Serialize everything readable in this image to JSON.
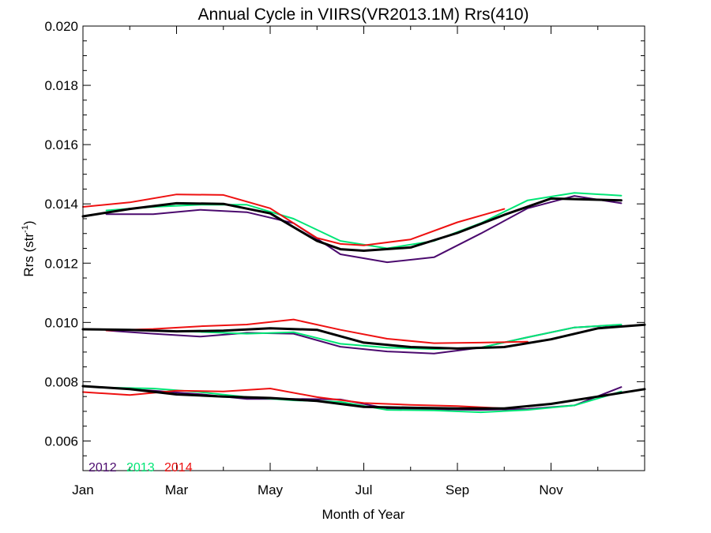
{
  "chart_data": {
    "type": "line",
    "title": "Annual Cycle in VIIRS(VR2013.1M) Rrs(410)",
    "xlabel": "Month of Year",
    "ylabel_main": "Rrs (str",
    "ylabel_sup": "-1",
    "ylabel_close": ")",
    "xlim": [
      1,
      13
    ],
    "ylim": [
      0.005,
      0.02
    ],
    "x_ticks": [
      {
        "value": 1,
        "label": "Jan"
      },
      {
        "value": 3,
        "label": "Mar"
      },
      {
        "value": 5,
        "label": "May"
      },
      {
        "value": 7,
        "label": "Jul"
      },
      {
        "value": 9,
        "label": "Sep"
      },
      {
        "value": 11,
        "label": "Nov"
      }
    ],
    "y_ticks": [
      {
        "value": 0.006,
        "label": "0.006"
      },
      {
        "value": 0.008,
        "label": "0.008"
      },
      {
        "value": 0.01,
        "label": "0.010"
      },
      {
        "value": 0.012,
        "label": "0.012"
      },
      {
        "value": 0.014,
        "label": "0.014"
      },
      {
        "value": 0.016,
        "label": "0.016"
      },
      {
        "value": 0.018,
        "label": "0.018"
      },
      {
        "value": 0.02,
        "label": "0.020"
      }
    ],
    "grid": false,
    "legend_placement": "bottom-left",
    "legend": [
      {
        "label": "2012",
        "color": "#4b0a6e"
      },
      {
        "label": "2013",
        "color": "#00e676"
      },
      {
        "label": "2014",
        "color": "#ee1111"
      }
    ],
    "series": [
      {
        "group": "upper",
        "legend_index": 0,
        "color": "#4b0a6e",
        "width": 2,
        "points": [
          [
            1.5,
            0.01365
          ],
          [
            2.5,
            0.01365
          ],
          [
            3.5,
            0.0138
          ],
          [
            4.5,
            0.01372
          ],
          [
            5.5,
            0.01335
          ],
          [
            6.5,
            0.0123
          ],
          [
            7.5,
            0.01203
          ],
          [
            8.5,
            0.0122
          ],
          [
            9.5,
            0.013
          ],
          [
            10.5,
            0.01385
          ],
          [
            11.5,
            0.01427
          ],
          [
            12.5,
            0.01402
          ]
        ]
      },
      {
        "group": "upper",
        "legend_index": 1,
        "color": "#00e676",
        "width": 2,
        "points": [
          [
            1.5,
            0.01378
          ],
          [
            2.5,
            0.0139
          ],
          [
            3.5,
            0.01397
          ],
          [
            4.5,
            0.01397
          ],
          [
            5.5,
            0.0135
          ],
          [
            6.5,
            0.01275
          ],
          [
            7.5,
            0.0125
          ],
          [
            8.5,
            0.01275
          ],
          [
            9.5,
            0.01335
          ],
          [
            10.5,
            0.01412
          ],
          [
            11.5,
            0.01437
          ],
          [
            12.5,
            0.01428
          ]
        ]
      },
      {
        "group": "upper",
        "legend_index": 2,
        "color": "#ee1111",
        "width": 2,
        "points": [
          [
            1,
            0.0139
          ],
          [
            2,
            0.01405
          ],
          [
            3,
            0.01432
          ],
          [
            4,
            0.0143
          ],
          [
            5,
            0.01385
          ],
          [
            6,
            0.01285
          ],
          [
            6.5,
            0.01265
          ],
          [
            7,
            0.0126
          ],
          [
            8,
            0.0128
          ],
          [
            9,
            0.01338
          ],
          [
            10,
            0.01383
          ]
        ]
      },
      {
        "group": "upper",
        "legend_index": null,
        "color": "#000000",
        "width": 3,
        "points": [
          [
            1,
            0.01358
          ],
          [
            2,
            0.01383
          ],
          [
            3,
            0.01402
          ],
          [
            4,
            0.014
          ],
          [
            5,
            0.01368
          ],
          [
            6,
            0.01275
          ],
          [
            6.5,
            0.01247
          ],
          [
            7,
            0.01242
          ],
          [
            8,
            0.01253
          ],
          [
            9,
            0.01302
          ],
          [
            10,
            0.01363
          ],
          [
            11,
            0.01418
          ],
          [
            12.5,
            0.01412
          ]
        ]
      },
      {
        "group": "middle",
        "legend_index": 0,
        "color": "#4b0a6e",
        "width": 2,
        "points": [
          [
            1.5,
            0.00973
          ],
          [
            2.5,
            0.00962
          ],
          [
            3.5,
            0.00952
          ],
          [
            4.5,
            0.00965
          ],
          [
            5.5,
            0.00962
          ],
          [
            6.5,
            0.00918
          ],
          [
            7.5,
            0.00902
          ],
          [
            8.5,
            0.00895
          ],
          [
            9.5,
            0.00915
          ],
          [
            10.5,
            0.0095
          ],
          [
            11.5,
            0.00983
          ],
          [
            12.5,
            0.00992
          ]
        ]
      },
      {
        "group": "middle",
        "legend_index": 1,
        "color": "#00e676",
        "width": 2,
        "points": [
          [
            1.5,
            0.00977
          ],
          [
            2.5,
            0.00972
          ],
          [
            3.5,
            0.00968
          ],
          [
            4.5,
            0.00962
          ],
          [
            5.5,
            0.00967
          ],
          [
            6.5,
            0.00928
          ],
          [
            7.5,
            0.00915
          ],
          [
            8.5,
            0.0091
          ],
          [
            9.5,
            0.00915
          ],
          [
            10.5,
            0.0095
          ],
          [
            11.5,
            0.00983
          ],
          [
            12.5,
            0.00993
          ]
        ]
      },
      {
        "group": "middle",
        "legend_index": 2,
        "color": "#ee1111",
        "width": 2,
        "points": [
          [
            1.5,
            0.00973
          ],
          [
            2.5,
            0.00978
          ],
          [
            3.5,
            0.00987
          ],
          [
            4.5,
            0.00993
          ],
          [
            5.5,
            0.0101
          ],
          [
            6.5,
            0.00975
          ],
          [
            7.5,
            0.00945
          ],
          [
            8.5,
            0.0093
          ],
          [
            9.5,
            0.00932
          ],
          [
            10.5,
            0.00935
          ]
        ]
      },
      {
        "group": "middle",
        "legend_index": null,
        "color": "#000000",
        "width": 3,
        "points": [
          [
            1,
            0.00977
          ],
          [
            2,
            0.00975
          ],
          [
            3,
            0.0097
          ],
          [
            4,
            0.00972
          ],
          [
            5,
            0.0098
          ],
          [
            6,
            0.00975
          ],
          [
            7,
            0.00932
          ],
          [
            8,
            0.00917
          ],
          [
            9,
            0.00912
          ],
          [
            10,
            0.00917
          ],
          [
            11,
            0.00943
          ],
          [
            12,
            0.0098
          ],
          [
            13,
            0.00992
          ]
        ]
      },
      {
        "group": "lower",
        "legend_index": 0,
        "color": "#4b0a6e",
        "width": 2,
        "points": [
          [
            1.5,
            0.0078
          ],
          [
            2.5,
            0.0077
          ],
          [
            3.5,
            0.00758
          ],
          [
            4.5,
            0.00742
          ],
          [
            5.5,
            0.00742
          ],
          [
            6.5,
            0.0074
          ],
          [
            7.5,
            0.0071
          ],
          [
            8.5,
            0.00707
          ],
          [
            9.5,
            0.00705
          ],
          [
            10.5,
            0.00708
          ],
          [
            11.5,
            0.0072
          ],
          [
            12.5,
            0.00782
          ]
        ]
      },
      {
        "group": "lower",
        "legend_index": 1,
        "color": "#00e676",
        "width": 2,
        "points": [
          [
            1.5,
            0.0078
          ],
          [
            2.5,
            0.00777
          ],
          [
            3.5,
            0.00765
          ],
          [
            4.5,
            0.00748
          ],
          [
            5.5,
            0.00737
          ],
          [
            6.5,
            0.00732
          ],
          [
            7.5,
            0.00705
          ],
          [
            8.5,
            0.00703
          ],
          [
            9.5,
            0.00697
          ],
          [
            10.5,
            0.00705
          ],
          [
            11.5,
            0.0072
          ],
          [
            12.5,
            0.00767
          ]
        ]
      },
      {
        "group": "lower",
        "legend_index": 2,
        "color": "#ee1111",
        "width": 2,
        "points": [
          [
            1,
            0.00765
          ],
          [
            2,
            0.00755
          ],
          [
            3,
            0.0077
          ],
          [
            4,
            0.00767
          ],
          [
            5,
            0.00777
          ],
          [
            6,
            0.00748
          ],
          [
            7,
            0.00728
          ],
          [
            8,
            0.00722
          ],
          [
            9,
            0.00718
          ],
          [
            10,
            0.0071
          ]
        ]
      },
      {
        "group": "lower",
        "legend_index": null,
        "color": "#000000",
        "width": 3,
        "points": [
          [
            1,
            0.00785
          ],
          [
            2,
            0.00775
          ],
          [
            3,
            0.00757
          ],
          [
            4,
            0.0075
          ],
          [
            5,
            0.00745
          ],
          [
            6,
            0.00735
          ],
          [
            7,
            0.00715
          ],
          [
            8,
            0.00712
          ],
          [
            9,
            0.0071
          ],
          [
            10,
            0.0071
          ],
          [
            11,
            0.00725
          ],
          [
            12,
            0.0075
          ],
          [
            13,
            0.00775
          ]
        ]
      }
    ]
  }
}
